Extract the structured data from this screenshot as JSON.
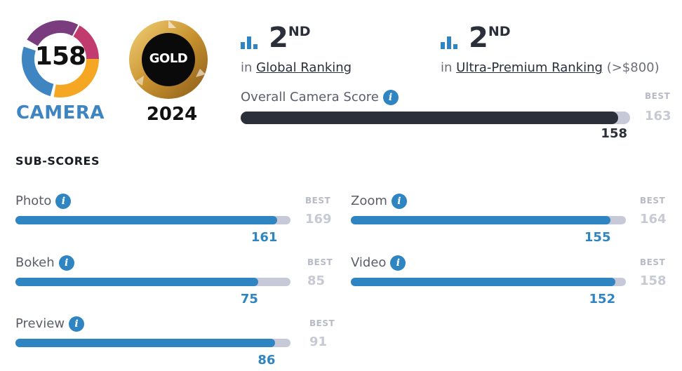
{
  "camera_badge": {
    "score": "158",
    "label": "CAMERA",
    "colors": [
      "#3e85c2",
      "#f5a623",
      "#7a3c7e",
      "#c23b6e"
    ]
  },
  "gold_badge": {
    "text": "GOLD",
    "year": "2024",
    "colors": {
      "gold": "#d4a545",
      "center": "#0a0a0a"
    }
  },
  "rankings": [
    {
      "number": "2",
      "suffix": "ND",
      "prefix": "in",
      "link": "Global Ranking",
      "extra": ""
    },
    {
      "number": "2",
      "suffix": "ND",
      "prefix": "in",
      "link": "Ultra-Premium Ranking",
      "extra": "(>$800)"
    }
  ],
  "overall": {
    "label": "Overall Camera Score",
    "score": 158,
    "score_text": "158",
    "best": 163,
    "best_text": "163",
    "best_label": "BEST",
    "fill_color": "#2b2f3a"
  },
  "subscores": {
    "title": "SUB-SCORES",
    "best_label": "BEST",
    "fill_color": "#2f84c2",
    "items": [
      {
        "name": "Photo",
        "score": 161,
        "score_text": "161",
        "best": 169,
        "best_text": "169"
      },
      {
        "name": "Zoom",
        "score": 155,
        "score_text": "155",
        "best": 164,
        "best_text": "164"
      },
      {
        "name": "Bokeh",
        "score": 75,
        "score_text": "75",
        "best": 85,
        "best_text": "85"
      },
      {
        "name": "Video",
        "score": 152,
        "score_text": "152",
        "best": 158,
        "best_text": "158"
      },
      {
        "name": "Preview",
        "score": 86,
        "score_text": "86",
        "best": 91,
        "best_text": "91"
      }
    ]
  },
  "icons": {
    "rank": "bar-chart-icon",
    "info": "info-icon"
  }
}
